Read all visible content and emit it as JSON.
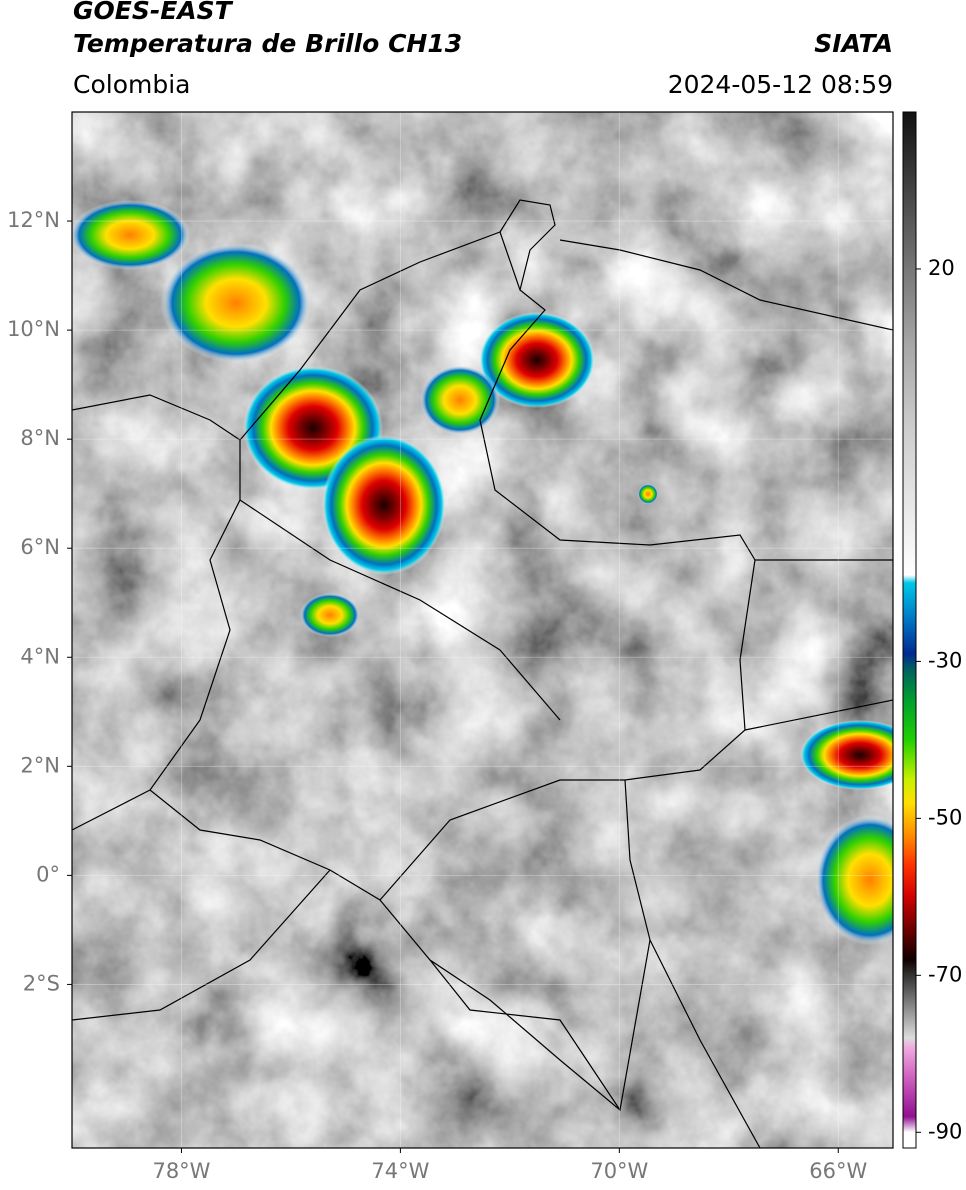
{
  "header": {
    "title": "GOES-EAST",
    "subtitle": "Temperatura de Brillo CH13",
    "source": "SIATA",
    "region": "Colombia",
    "datetime": "2024-05-12 08:59"
  },
  "map": {
    "lonlim": [
      -80,
      -65
    ],
    "latlim": [
      -5,
      14
    ],
    "lon_ticks": [
      {
        "value": -78,
        "label": "78°W"
      },
      {
        "value": -74,
        "label": "74°W"
      },
      {
        "value": -70,
        "label": "70°W"
      },
      {
        "value": -66,
        "label": "66°W"
      }
    ],
    "lat_ticks": [
      {
        "value": 12,
        "label": "12°N"
      },
      {
        "value": 10,
        "label": "10°N"
      },
      {
        "value": 8,
        "label": "8°N"
      },
      {
        "value": 6,
        "label": "6°N"
      },
      {
        "value": 4,
        "label": "4°N"
      },
      {
        "value": 2,
        "label": "2°N"
      },
      {
        "value": 0,
        "label": "0°"
      },
      {
        "value": -2,
        "label": "2°S"
      }
    ],
    "grid": true
  },
  "colorbar": {
    "lim": [
      -92,
      40
    ],
    "ticks": [
      20,
      -30,
      -50,
      -70,
      -90
    ],
    "colormap": [
      {
        "value": 40,
        "color": "#111111"
      },
      {
        "value": 30,
        "color": "#444444"
      },
      {
        "value": 20,
        "color": "#777777"
      },
      {
        "value": 10,
        "color": "#a8a8a8"
      },
      {
        "value": 0,
        "color": "#cccccc"
      },
      {
        "value": -19,
        "color": "#ffffff"
      },
      {
        "value": -20,
        "color": "#00c8e8"
      },
      {
        "value": -25,
        "color": "#0070c0"
      },
      {
        "value": -29,
        "color": "#002a90"
      },
      {
        "value": -31,
        "color": "#006060"
      },
      {
        "value": -35,
        "color": "#00a030"
      },
      {
        "value": -40,
        "color": "#20d000"
      },
      {
        "value": -45,
        "color": "#c8f000"
      },
      {
        "value": -48,
        "color": "#ffe000"
      },
      {
        "value": -52,
        "color": "#ff9000"
      },
      {
        "value": -56,
        "color": "#ff3000"
      },
      {
        "value": -60,
        "color": "#d00000"
      },
      {
        "value": -64,
        "color": "#700000"
      },
      {
        "value": -68,
        "color": "#100000"
      },
      {
        "value": -70,
        "color": "#333333"
      },
      {
        "value": -74,
        "color": "#888888"
      },
      {
        "value": -78,
        "color": "#dddddd"
      },
      {
        "value": -79,
        "color": "#f0b0e0"
      },
      {
        "value": -83,
        "color": "#d060c0"
      },
      {
        "value": -88,
        "color": "#901090"
      },
      {
        "value": -90,
        "color": "#ffffff"
      },
      {
        "value": -92,
        "color": "#ffffff"
      }
    ]
  }
}
